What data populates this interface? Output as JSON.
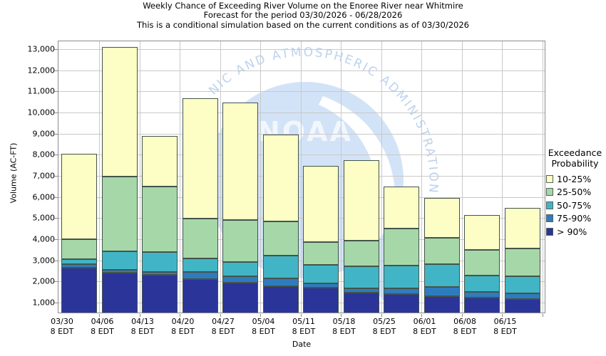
{
  "title": {
    "line1": "Weekly Chance of Exceeding River Volume on the Enoree River near Whitmire",
    "line2": "Forecast for the period 03/30/2026 - 06/28/2026",
    "line3": "This is a conditional simulation based on the current conditions as of 03/30/2026"
  },
  "watermark": {
    "arc_text": "NIC AND ATMOSPHERIC ADMINISTRATION",
    "logo_text": "NOAA",
    "circle_color": "#d3e3f7",
    "arc_text_color": "#bdd3ee"
  },
  "legend": {
    "title_line1": "Exceedance",
    "title_line2": "Probability",
    "items": [
      {
        "label": "10-25%",
        "color": "#fdfdc6"
      },
      {
        "label": "25-50%",
        "color": "#a6d7a8"
      },
      {
        "label": "50-75%",
        "color": "#41b5c5"
      },
      {
        "label": "75-90%",
        "color": "#2e7cbe"
      },
      {
        "label": "> 90%",
        "color": "#2b3499"
      }
    ]
  },
  "chart_data": {
    "type": "bar",
    "stacked": true,
    "title": "Weekly Chance of Exceeding River Volume on the Enoree River near Whitmire",
    "xlabel": "Date",
    "ylabel": "Volume (AC-FT)",
    "ylim": [
      500,
      13400
    ],
    "grid": true,
    "legend_position": "right",
    "yticks": [
      {
        "v": 1000,
        "label": "1,000"
      },
      {
        "v": 2000,
        "label": "2,000"
      },
      {
        "v": 3000,
        "label": "3,000"
      },
      {
        "v": 4000,
        "label": "4,000"
      },
      {
        "v": 5000,
        "label": "5,000"
      },
      {
        "v": 6000,
        "label": "6,000"
      },
      {
        "v": 7000,
        "label": "7,000"
      },
      {
        "v": 8000,
        "label": "8,000"
      },
      {
        "v": 9000,
        "label": "9,000"
      },
      {
        "v": 10000,
        "label": "10,000"
      },
      {
        "v": 11000,
        "label": "11,000"
      },
      {
        "v": 12000,
        "label": "12,000"
      },
      {
        "v": 13000,
        "label": "13,000"
      }
    ],
    "categories": [
      {
        "date": "03/30",
        "time": "8 EDT"
      },
      {
        "date": "04/06",
        "time": "8 EDT"
      },
      {
        "date": "04/13",
        "time": "8 EDT"
      },
      {
        "date": "04/20",
        "time": "8 EDT"
      },
      {
        "date": "04/27",
        "time": "8 EDT"
      },
      {
        "date": "05/04",
        "time": "8 EDT"
      },
      {
        "date": "05/11",
        "time": "8 EDT"
      },
      {
        "date": "05/18",
        "time": "8 EDT"
      },
      {
        "date": "05/25",
        "time": "8 EDT"
      },
      {
        "date": "06/01",
        "time": "8 EDT"
      },
      {
        "date": "06/08",
        "time": "8 EDT"
      },
      {
        "date": "06/15",
        "time": "8 EDT"
      }
    ],
    "series_note": "values are cumulative stack tops (AC-FT volume at each exceedance boundary), listed bottom segment first",
    "series": [
      {
        "name": "> 90%",
        "color": "#2b3499",
        "tops": [
          2650,
          2420,
          2330,
          2110,
          1960,
          1780,
          1700,
          1480,
          1400,
          1310,
          1230,
          1190
        ]
      },
      {
        "name": "75-90%",
        "color": "#2e7cbe",
        "tops": [
          2840,
          2550,
          2450,
          2440,
          2260,
          2150,
          1910,
          1670,
          1670,
          1740,
          1510,
          1450
        ]
      },
      {
        "name": "50-75%",
        "color": "#41b5c5",
        "tops": [
          3050,
          3440,
          3380,
          3110,
          2910,
          3240,
          2780,
          2730,
          2740,
          2810,
          2280,
          2240
        ]
      },
      {
        "name": "25-50%",
        "color": "#a6d7a8",
        "tops": [
          4000,
          6980,
          6490,
          4970,
          4920,
          4860,
          3880,
          3950,
          4520,
          4070,
          3510,
          3560
        ]
      },
      {
        "name": "10-25%",
        "color": "#fdfdc6",
        "tops": [
          8060,
          13110,
          8870,
          10670,
          10480,
          8940,
          7480,
          7740,
          6510,
          5950,
          5150,
          5480
        ]
      }
    ],
    "colors": {
      "gridline": "#c9c9c9",
      "frame": "#8c8c8c",
      "segment_border": "#44544a"
    }
  }
}
